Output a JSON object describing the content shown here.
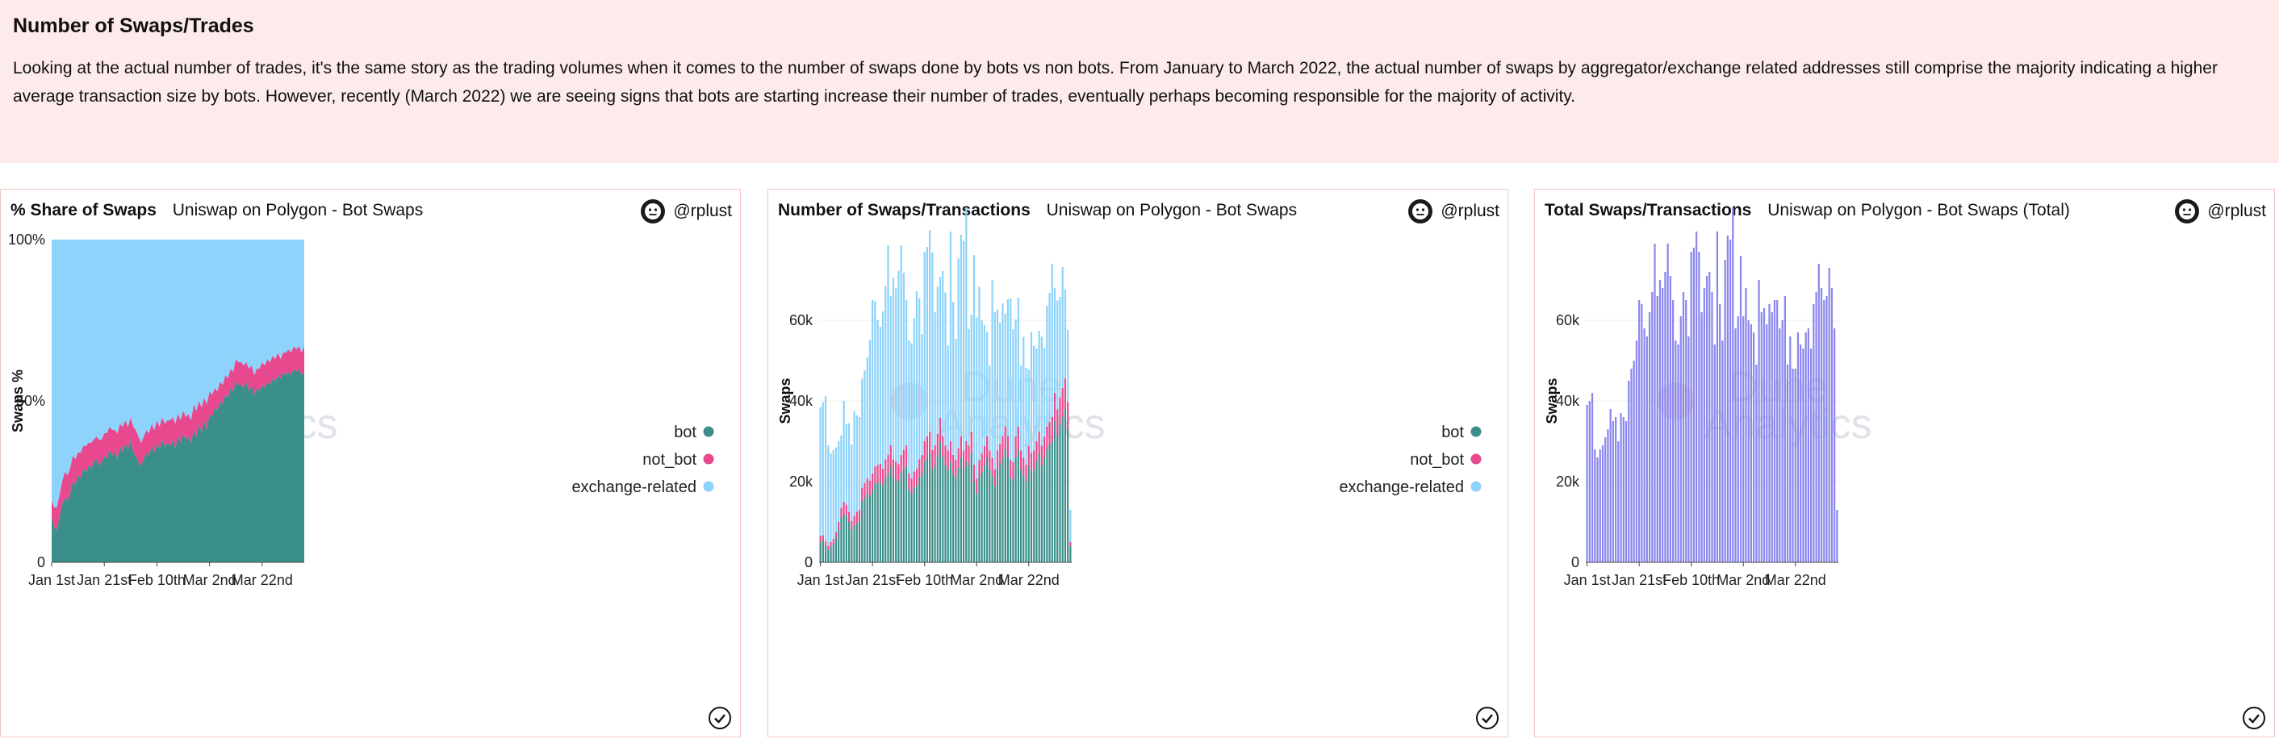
{
  "text_panel": {
    "title": "Number of Swaps/Trades",
    "body": "Looking at the actual number of trades, it's the same story as the trading volumes when it comes to the number of swaps done by bots vs non bots. From January to March 2022, the actual number of swaps by aggregator/exchange related addresses still comprise the majority indicating a higher average transaction size by bots. However, recently (March 2022) we are seeing signs that bots are starting increase their number of trades, eventually perhaps becoming responsible for the majority of activity."
  },
  "colors": {
    "bot": "#3b8f8b",
    "not_bot": "#e8488d",
    "exchange_related": "#8ed3fb",
    "total": "#8b87ee",
    "panel_bg": "#fcebea",
    "card_border": "#f3c6c3"
  },
  "watermark": {
    "line1": "Dune",
    "line2": "Analytics"
  },
  "cards": [
    {
      "title": "% Share of Swaps",
      "subtitle": "Uniswap on Polygon - Bot Swaps",
      "user": "@rplust",
      "avatar_icon": "neutral-face-icon"
    },
    {
      "title": "Number of Swaps/Transactions",
      "subtitle": "Uniswap on Polygon - Bot Swaps",
      "user": "@rplust",
      "avatar_icon": "neutral-face-icon"
    },
    {
      "title": "Total Swaps/Transactions",
      "subtitle": "Uniswap on Polygon - Bot Swaps (Total)",
      "user": "@rplust",
      "avatar_icon": "neutral-face-icon"
    }
  ],
  "chart_data": [
    {
      "type": "area",
      "stacked": true,
      "normalized": true,
      "ylabel": "Swaps %",
      "ylim": [
        0,
        100
      ],
      "y_ticks": [
        0,
        50,
        100
      ],
      "y_tick_labels": [
        "0",
        "50%",
        "100%"
      ],
      "x_tick_labels": [
        "Jan 1st",
        "Jan 21st",
        "Feb 10th",
        "Mar 2nd",
        "Mar 22nd"
      ],
      "x_tick_indices": [
        0,
        20,
        40,
        60,
        80
      ],
      "legend": [
        "bot",
        "not_bot",
        "exchange-related"
      ],
      "legend_position": "right",
      "series": [
        {
          "name": "bot",
          "values": [
            14,
            11,
            10,
            14,
            18,
            20,
            19,
            21,
            25,
            24,
            27,
            26,
            29,
            28,
            30,
            29,
            31,
            32,
            30,
            31,
            33,
            32,
            35,
            33,
            34,
            32,
            36,
            34,
            37,
            35,
            38,
            34,
            33,
            31,
            30,
            32,
            34,
            33,
            36,
            34,
            37,
            35,
            38,
            36,
            37,
            36,
            38,
            35,
            39,
            37,
            40,
            38,
            39,
            37,
            41,
            39,
            43,
            40,
            44,
            41,
            46,
            45,
            48,
            47,
            50,
            49,
            52,
            51,
            54,
            53,
            56,
            55,
            55,
            54,
            56,
            53,
            55,
            52,
            54,
            53,
            55,
            54,
            56,
            55,
            57,
            56,
            58,
            57,
            59,
            58,
            59,
            58,
            60,
            59,
            60,
            58,
            59
          ]
        },
        {
          "name": "not_bot",
          "values": [
            5,
            6,
            7,
            7,
            7,
            8,
            8,
            8,
            8,
            8,
            7,
            8,
            7,
            8,
            7,
            8,
            7,
            7,
            8,
            7,
            7,
            8,
            7,
            8,
            7,
            8,
            7,
            8,
            7,
            7,
            7,
            8,
            8,
            8,
            7,
            7,
            7,
            7,
            7,
            7,
            7,
            7,
            7,
            7,
            7,
            8,
            7,
            8,
            7,
            7,
            7,
            7,
            7,
            7,
            8,
            8,
            7,
            8,
            7,
            8,
            7,
            7,
            6,
            6,
            6,
            6,
            6,
            6,
            6,
            6,
            7,
            7,
            7,
            7,
            6,
            7,
            6,
            6,
            6,
            7,
            7,
            7,
            7,
            7,
            7,
            7,
            7,
            6,
            6,
            7,
            7,
            7,
            7,
            7,
            7,
            7,
            8
          ]
        },
        {
          "name": "exchange-related",
          "values": [
            81,
            83,
            83,
            79,
            75,
            72,
            73,
            71,
            67,
            68,
            66,
            66,
            64,
            64,
            63,
            63,
            62,
            61,
            62,
            62,
            60,
            60,
            58,
            59,
            59,
            60,
            57,
            58,
            56,
            58,
            55,
            58,
            59,
            61,
            63,
            61,
            59,
            60,
            57,
            59,
            56,
            58,
            55,
            57,
            56,
            56,
            55,
            57,
            54,
            56,
            53,
            55,
            54,
            56,
            51,
            53,
            50,
            52,
            49,
            51,
            47,
            48,
            46,
            47,
            44,
            45,
            42,
            43,
            40,
            41,
            37,
            38,
            38,
            39,
            38,
            40,
            39,
            42,
            40,
            40,
            38,
            39,
            37,
            38,
            36,
            37,
            35,
            37,
            35,
            35,
            34,
            35,
            33,
            34,
            33,
            35,
            33
          ]
        }
      ]
    },
    {
      "type": "bar",
      "stacked": true,
      "ylabel": "Swaps",
      "ylim": [
        0,
        80000
      ],
      "y_ticks": [
        0,
        20000,
        40000,
        60000
      ],
      "y_tick_labels": [
        "0",
        "20k",
        "40k",
        "60k"
      ],
      "x_tick_labels": [
        "Jan 1st",
        "Jan 21st",
        "Feb 10th",
        "Mar 2nd",
        "Mar 22nd"
      ],
      "x_tick_indices": [
        0,
        20,
        40,
        60,
        80
      ],
      "legend": [
        "bot",
        "not_bot",
        "exchange-related"
      ],
      "legend_position": "right",
      "series": [
        {
          "name": "bot",
          "values": [
            5000,
            5200,
            4000,
            3000,
            3800,
            4500,
            6000,
            8000,
            11000,
            12000,
            11500,
            10000,
            8000,
            9000,
            9800,
            10200,
            15000,
            16000,
            17000,
            16500,
            18000,
            19500,
            19800,
            20000,
            19000,
            21000,
            22000,
            24000,
            21000,
            20500,
            20000,
            22000,
            23000,
            24000,
            18000,
            17000,
            18500,
            19000,
            21000,
            22000,
            25000,
            26000,
            27000,
            23000,
            24000,
            26500,
            30000,
            26000,
            24000,
            23000,
            25000,
            22000,
            21000,
            23500,
            26000,
            23000,
            25000,
            24000,
            27000,
            20000,
            17000,
            21000,
            22500,
            24000,
            26000,
            23000,
            21500,
            19000,
            23000,
            24500,
            26000,
            28000,
            26000,
            21000,
            20500,
            26000,
            28000,
            23000,
            21500,
            20000,
            24000,
            22500,
            23000,
            25000,
            27000,
            24000,
            26000,
            28000,
            29000,
            30000,
            35000,
            31500,
            34000,
            36000,
            38000,
            33000,
            4000
          ]
        },
        {
          "name": "not_bot",
          "values": [
            1500,
            1500,
            1200,
            1000,
            1200,
            1300,
            1500,
            2000,
            2500,
            3000,
            2800,
            2500,
            2200,
            2500,
            2700,
            2800,
            3500,
            3600,
            3800,
            3700,
            4000,
            4200,
            4300,
            4400,
            4200,
            4500,
            4600,
            5000,
            4500,
            4400,
            4300,
            4600,
            4800,
            5000,
            4000,
            3800,
            4000,
            4200,
            4500,
            4600,
            5000,
            5200,
            5400,
            4800,
            5000,
            5300,
            5800,
            5200,
            4900,
            4700,
            5000,
            4600,
            4400,
            4800,
            5200,
            4700,
            5000,
            4900,
            5400,
            4200,
            3700,
            4300,
            4500,
            4800,
            5200,
            4700,
            4400,
            4000,
            4700,
            4900,
            5200,
            5600,
            5200,
            4400,
            4300,
            5200,
            5600,
            4700,
            4400,
            4200,
            4800,
            4600,
            4700,
            5000,
            5400,
            4900,
            5200,
            5600,
            5800,
            6000,
            7000,
            6400,
            6800,
            7200,
            7600,
            6600,
            1000
          ]
        },
        {
          "name": "exchange-related",
          "values": [
            32000,
            33000,
            36000,
            25000,
            22000,
            22000,
            21000,
            20000,
            18000,
            25000,
            20000,
            22000,
            19000,
            26000,
            24000,
            23000,
            27000,
            28000,
            30000,
            35000,
            43000,
            41000,
            36000,
            34000,
            39000,
            43000,
            52000,
            37000,
            45000,
            43000,
            48000,
            52000,
            44000,
            36000,
            33000,
            33500,
            38000,
            44000,
            40000,
            30000,
            47000,
            47000,
            50000,
            49000,
            33000,
            36500,
            35000,
            41000,
            38000,
            26000,
            52000,
            38000,
            30000,
            47000,
            50000,
            52000,
            58000,
            29000,
            29000,
            52000,
            40000,
            43000,
            33000,
            30000,
            26000,
            21000,
            44000,
            39000,
            35000,
            30000,
            33000,
            28000,
            34000,
            40000,
            33000,
            29000,
            32000,
            21000,
            30000,
            24000,
            19000,
            30000,
            26000,
            23000,
            25000,
            27000,
            22000,
            30000,
            32000,
            38000,
            26000,
            27000,
            25000,
            30000,
            22000,
            18000,
            8000
          ]
        }
      ]
    },
    {
      "type": "bar",
      "ylabel": "Swaps",
      "ylim": [
        0,
        80000
      ],
      "y_ticks": [
        0,
        20000,
        40000,
        60000
      ],
      "y_tick_labels": [
        "0",
        "20k",
        "40k",
        "60k"
      ],
      "x_tick_labels": [
        "Jan 1st",
        "Jan 21st",
        "Feb 10th",
        "Mar 2nd",
        "Mar 22nd"
      ],
      "x_tick_indices": [
        0,
        20,
        40,
        60,
        80
      ],
      "series": [
        {
          "name": "total",
          "values": [
            39000,
            40000,
            42000,
            28000,
            26000,
            28000,
            29000,
            31000,
            33000,
            38000,
            35000,
            36000,
            30000,
            37000,
            36000,
            35000,
            45000,
            48000,
            50000,
            55000,
            65000,
            64000,
            58000,
            56000,
            62000,
            67000,
            79000,
            66000,
            70000,
            68000,
            72000,
            79000,
            71000,
            65000,
            55000,
            54000,
            61000,
            67000,
            65000,
            56000,
            77000,
            78000,
            82000,
            77000,
            62000,
            68000,
            71000,
            72000,
            67000,
            54000,
            82000,
            64000,
            55000,
            75000,
            81000,
            80000,
            88000,
            58000,
            61000,
            76000,
            61000,
            68000,
            60000,
            59000,
            57000,
            49000,
            70000,
            62000,
            63000,
            59000,
            64000,
            62000,
            65000,
            65000,
            58000,
            60000,
            66000,
            49000,
            56000,
            48000,
            48000,
            57000,
            54000,
            53000,
            57000,
            58000,
            53000,
            64000,
            67000,
            74000,
            68000,
            65000,
            66000,
            73000,
            68000,
            58000,
            13000
          ]
        }
      ]
    }
  ]
}
